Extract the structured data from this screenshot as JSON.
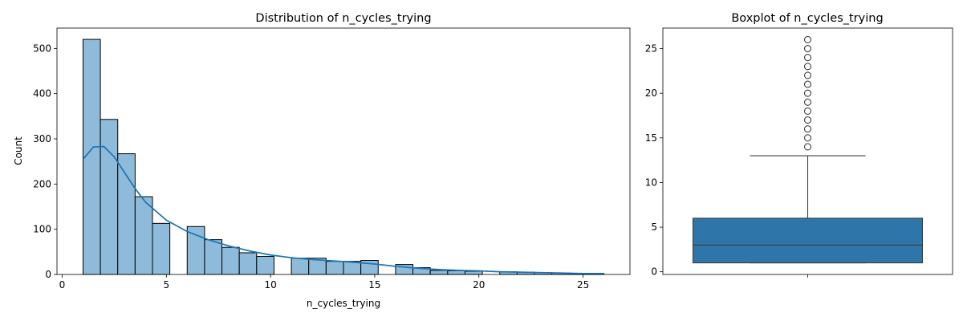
{
  "chart_data": [
    {
      "type": "bar",
      "subtype": "histogram-with-kde",
      "title": "Distribution of n_cycles_trying",
      "xlabel": "n_cycles_trying",
      "ylabel": "Count",
      "xlim": [
        -0.25,
        27.25
      ],
      "ylim": [
        0,
        545
      ],
      "xticks": [
        0,
        5,
        10,
        15,
        20,
        25
      ],
      "yticks": [
        0,
        100,
        200,
        300,
        400,
        500
      ],
      "bin_width": 0.8333,
      "bins": [
        {
          "x0": 1.0,
          "x1": 1.8333,
          "count": 520
        },
        {
          "x0": 1.8333,
          "x1": 2.6667,
          "count": 343
        },
        {
          "x0": 2.6667,
          "x1": 3.5,
          "count": 267
        },
        {
          "x0": 3.5,
          "x1": 4.3333,
          "count": 172
        },
        {
          "x0": 4.3333,
          "x1": 5.1667,
          "count": 113
        },
        {
          "x0": 5.1667,
          "x1": 6.0,
          "count": 0
        },
        {
          "x0": 6.0,
          "x1": 6.8333,
          "count": 106
        },
        {
          "x0": 6.8333,
          "x1": 7.6667,
          "count": 77
        },
        {
          "x0": 7.6667,
          "x1": 8.5,
          "count": 60
        },
        {
          "x0": 8.5,
          "x1": 9.3333,
          "count": 48
        },
        {
          "x0": 9.3333,
          "x1": 10.1667,
          "count": 40
        },
        {
          "x0": 10.1667,
          "x1": 11.0,
          "count": 0
        },
        {
          "x0": 11.0,
          "x1": 11.8333,
          "count": 36
        },
        {
          "x0": 11.8333,
          "x1": 12.6667,
          "count": 36
        },
        {
          "x0": 12.6667,
          "x1": 13.5,
          "count": 29
        },
        {
          "x0": 13.5,
          "x1": 14.3333,
          "count": 29
        },
        {
          "x0": 14.3333,
          "x1": 15.1667,
          "count": 31
        },
        {
          "x0": 15.1667,
          "x1": 16.0,
          "count": 0
        },
        {
          "x0": 16.0,
          "x1": 16.8333,
          "count": 22
        },
        {
          "x0": 16.8333,
          "x1": 17.6667,
          "count": 15
        },
        {
          "x0": 17.6667,
          "x1": 18.5,
          "count": 9
        },
        {
          "x0": 18.5,
          "x1": 19.3333,
          "count": 8
        },
        {
          "x0": 19.3333,
          "x1": 20.1667,
          "count": 7
        },
        {
          "x0": 20.1667,
          "x1": 21.0,
          "count": 0
        },
        {
          "x0": 21.0,
          "x1": 21.8333,
          "count": 6
        },
        {
          "x0": 21.8333,
          "x1": 22.6667,
          "count": 5
        },
        {
          "x0": 22.6667,
          "x1": 23.5,
          "count": 4
        },
        {
          "x0": 23.5,
          "x1": 24.3333,
          "count": 3
        },
        {
          "x0": 24.3333,
          "x1": 25.1667,
          "count": 2
        },
        {
          "x0": 25.1667,
          "x1": 26.0,
          "count": 2
        }
      ],
      "kde": {
        "x": [
          1,
          1.5,
          2,
          2.5,
          3,
          3.5,
          4,
          5,
          6,
          7,
          8,
          9,
          10,
          11,
          12,
          13,
          14,
          15,
          16,
          17,
          18,
          19,
          20,
          21,
          22,
          23,
          24,
          25,
          26
        ],
        "y": [
          255,
          282,
          283,
          260,
          225,
          190,
          160,
          120,
          95,
          77,
          63,
          52,
          43,
          37,
          33,
          30,
          27,
          23,
          18,
          14,
          11,
          9,
          8,
          6,
          5,
          4,
          3,
          2,
          2
        ]
      },
      "colors": {
        "bar_fill": "#8fbbdb",
        "bar_edge": "#000000",
        "kde_line": "#1f77b4"
      },
      "grid": false,
      "legend": "none"
    },
    {
      "type": "boxplot",
      "title": "Boxplot of n_cycles_trying",
      "ylim": [
        -0.3,
        27.3
      ],
      "yticks": [
        0,
        5,
        10,
        15,
        20,
        25
      ],
      "xticks": [
        ""
      ],
      "box": {
        "whisker_low": 1,
        "q1": 1,
        "median": 3,
        "q3": 6,
        "whisker_high": 13
      },
      "outliers": [
        14,
        15,
        16,
        17,
        18,
        19,
        20,
        21,
        22,
        23,
        24,
        25,
        26
      ],
      "colors": {
        "box_fill": "#2e76aa",
        "line": "#3d3d3d"
      },
      "grid": false,
      "legend": "none"
    }
  ]
}
